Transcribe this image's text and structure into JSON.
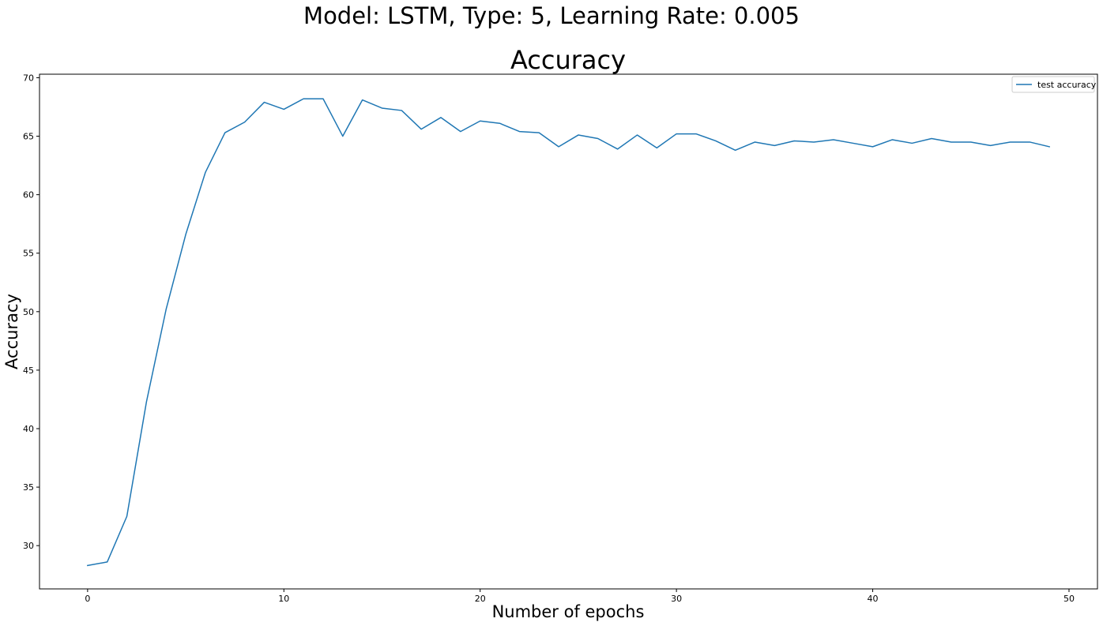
{
  "figure": {
    "suptitle": "Model: LSTM, Type: 5, Learning Rate: 0.005"
  },
  "chart_data": {
    "type": "line",
    "title": "Accuracy",
    "xlabel": "Number of epochs",
    "ylabel": "Accuracy",
    "xlim": [
      -2.45,
      51.45
    ],
    "ylim": [
      26.3,
      70.3
    ],
    "xticks": [
      0,
      10,
      20,
      30,
      40,
      50
    ],
    "yticks": [
      30,
      35,
      40,
      45,
      50,
      55,
      60,
      65,
      70
    ],
    "grid": false,
    "legend_position": "top-right",
    "series": [
      {
        "name": "test accuracy",
        "color": "#1f77b4",
        "x": [
          0,
          1,
          2,
          3,
          4,
          5,
          6,
          7,
          8,
          9,
          10,
          11,
          12,
          13,
          14,
          15,
          16,
          17,
          18,
          19,
          20,
          21,
          22,
          23,
          24,
          25,
          26,
          27,
          28,
          29,
          30,
          31,
          32,
          33,
          34,
          35,
          36,
          37,
          38,
          39,
          40,
          41,
          42,
          43,
          44,
          45,
          46,
          47,
          48,
          49
        ],
        "values": [
          28.3,
          28.6,
          32.5,
          42.3,
          50.2,
          56.6,
          61.9,
          65.3,
          66.2,
          67.9,
          67.3,
          68.2,
          68.2,
          65.0,
          68.1,
          67.4,
          67.2,
          65.6,
          66.6,
          65.4,
          66.3,
          66.1,
          65.4,
          65.3,
          64.1,
          65.1,
          64.8,
          63.9,
          65.1,
          64.0,
          65.2,
          65.2,
          64.6,
          63.8,
          64.5,
          64.2,
          64.6,
          64.5,
          64.7,
          64.4,
          64.1,
          64.7,
          64.4,
          64.8,
          64.5,
          64.5,
          64.2,
          64.5,
          64.5,
          64.1
        ]
      }
    ]
  }
}
